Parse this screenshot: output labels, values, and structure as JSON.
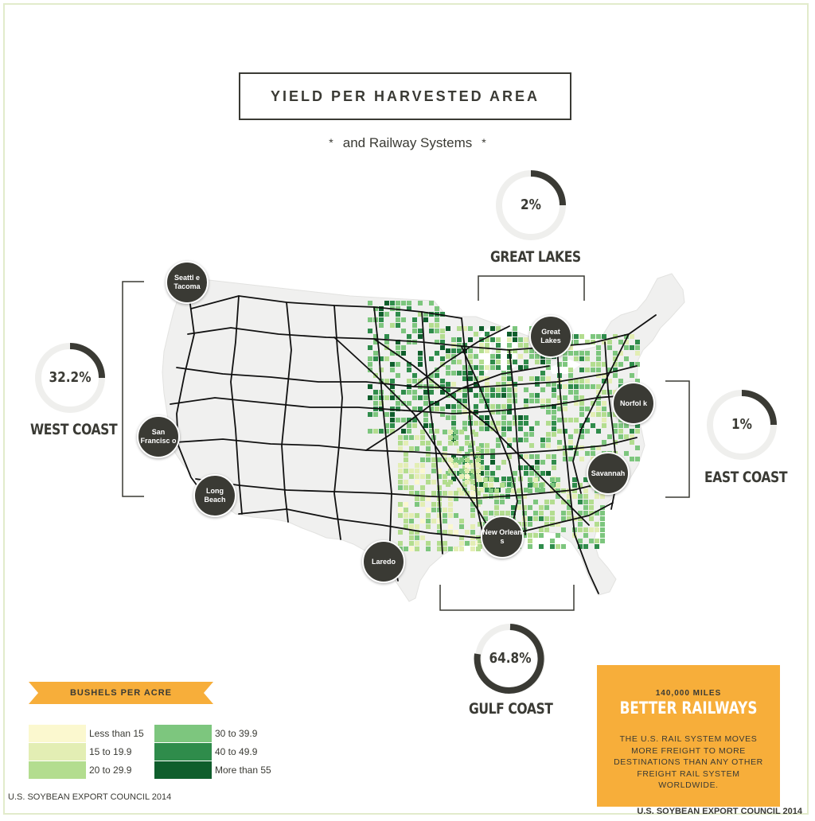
{
  "title": "YIELD PER HARVESTED AREA",
  "subtitle": "and Railway Systems",
  "subtitle_marks": "*",
  "regions": {
    "great_lakes": {
      "label": "GREAT LAKES",
      "percent": "2%",
      "fraction": 0.02
    },
    "west_coast": {
      "label": "WEST COAST",
      "percent": "32.2%",
      "fraction": 0.322
    },
    "east_coast": {
      "label": "EAST COAST",
      "percent": "1%",
      "fraction": 0.01
    },
    "gulf_coast": {
      "label": "GULF COAST",
      "percent": "64.8%",
      "fraction": 0.648
    }
  },
  "ports": {
    "seattle": "Seattl e Tacoma",
    "san_francisco": "San Francisc o",
    "long_beach": "Long Beach",
    "laredo": "Laredo",
    "great_lakes": "Great Lakes",
    "norfolk": "Norfol k",
    "savannah": "Savannah",
    "new_orleans": "New Orlean s"
  },
  "legend": {
    "title": "BUSHELS PER ACRE",
    "items": [
      {
        "label": "Less than 15",
        "color": "#fbf8cf"
      },
      {
        "label": "15 to 19.9",
        "color": "#e3eeb4"
      },
      {
        "label": "20 to 29.9",
        "color": "#b3dd8f"
      },
      {
        "label": "30 to 39.9",
        "color": "#7dc67e"
      },
      {
        "label": "40 to 49.9",
        "color": "#2f8c4b"
      },
      {
        "label": "More than 55",
        "color": "#0f5e2c"
      }
    ]
  },
  "rail_box": {
    "miles": "140,000 MILES",
    "title": "BETTER RAILWAYS",
    "description": "THE U.S. RAIL SYSTEM MOVES MORE FREIGHT TO MORE DESTINATIONS THAN ANY OTHER FREIGHT RAIL SYSTEM WORLDWIDE."
  },
  "footer_left": "U.S. SOYBEAN EXPORT COUNCIL 2014",
  "footer_right": "U.S. SOYBEAN EXPORT COUNCIL 2014",
  "colors": {
    "dark": "#3a3a34",
    "banner": "#f7ae3a",
    "ring_track": "#efefed",
    "map_land": "#f0f0ef",
    "rail": "#111111"
  }
}
